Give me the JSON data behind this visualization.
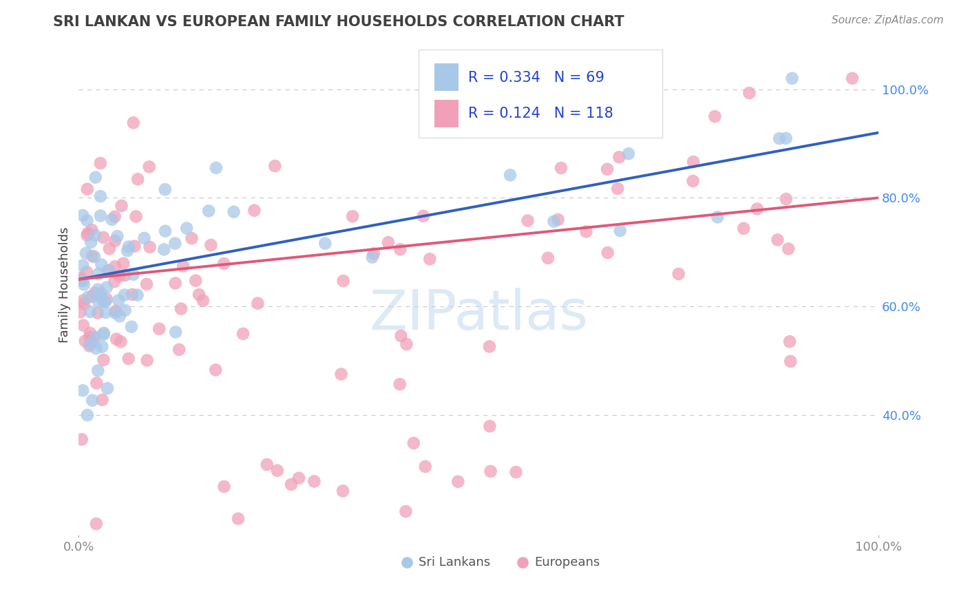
{
  "title": "SRI LANKAN VS EUROPEAN FAMILY HOUSEHOLDS CORRELATION CHART",
  "source": "Source: ZipAtlas.com",
  "ylabel": "Family Households",
  "legend_r1": "R = 0.334",
  "legend_n1": "N = 69",
  "legend_r2": "R = 0.124",
  "legend_n2": "N = 118",
  "legend_label1": "Sri Lankans",
  "legend_label2": "Europeans",
  "watermark": "ZIPatlas",
  "blue_color": "#a8c8e8",
  "pink_color": "#f0a0b8",
  "blue_line_color": "#3060c0",
  "pink_line_color": "#e05878",
  "title_color": "#404040",
  "source_color": "#888888",
  "ytick_color": "#4488ee",
  "xtick_color": "#888888",
  "ylabel_color": "#404040",
  "grid_color": "#cccccc",
  "watermark_color": "#c0d8f0",
  "legend_text_color": "#2244cc",
  "legend_border_color": "#dddddd",
  "yticks": [
    0.4,
    0.6,
    0.8,
    1.0
  ],
  "ytick_labels": [
    "40.0%",
    "60.0%",
    "80.0%",
    "100.0%"
  ],
  "xlim": [
    0.0,
    1.0
  ],
  "ylim": [
    0.18,
    1.1
  ]
}
